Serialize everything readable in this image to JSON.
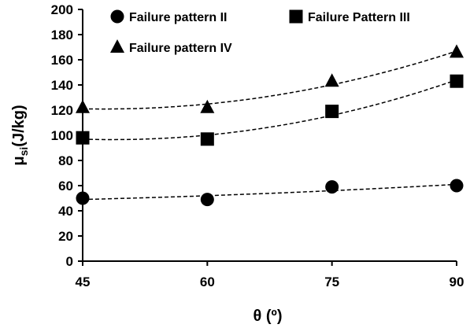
{
  "chart_data": {
    "type": "scatter",
    "x": [
      45,
      60,
      75,
      90
    ],
    "xlabel": "θ (º)",
    "ylabel": {
      "main": "μ",
      "sub": "si",
      "unit": "(J/kg)"
    },
    "xlim": [
      45,
      90
    ],
    "ylim": [
      0,
      200
    ],
    "x_ticks": [
      "45",
      "60",
      "75",
      "90"
    ],
    "y_ticks": [
      "0",
      "20",
      "40",
      "60",
      "80",
      "100",
      "120",
      "140",
      "160",
      "180",
      "200"
    ],
    "grid": false,
    "legend_position": "top",
    "trendlines": "dashed polynomial fit per series",
    "series": [
      {
        "name": "Failure pattern II",
        "marker": "circle",
        "values": [
          50,
          49,
          59,
          60
        ]
      },
      {
        "name": "Failure Pattern III",
        "marker": "square",
        "values": [
          98,
          97,
          119,
          143
        ]
      },
      {
        "name": "Failure pattern IV",
        "marker": "triangle",
        "values": [
          122,
          122,
          143,
          166
        ]
      }
    ],
    "colors": {
      "marker": "#000000",
      "axis": "#000000",
      "trendline": "#000000"
    }
  }
}
